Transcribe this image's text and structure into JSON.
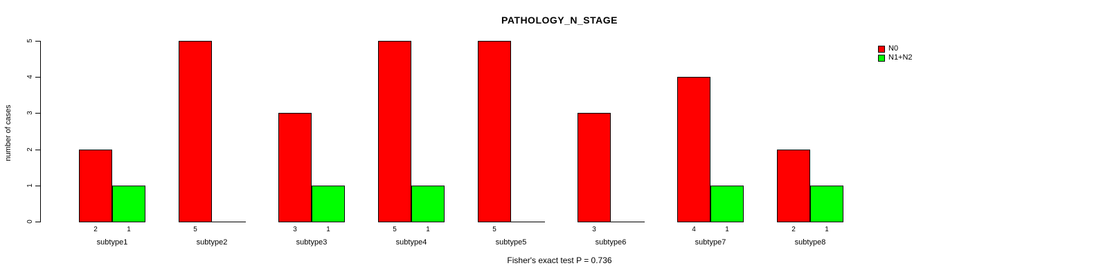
{
  "chart_data": {
    "type": "bar",
    "title": "PATHOLOGY_N_STAGE",
    "ylabel": "number of cases",
    "xlabel": "",
    "annotation": "Fisher's exact test P = 0.736",
    "categories": [
      "subtype1",
      "subtype2",
      "subtype3",
      "subtype4",
      "subtype5",
      "subtype6",
      "subtype7",
      "subtype8"
    ],
    "series": [
      {
        "name": "N0",
        "color": "#ff0000",
        "values": [
          2,
          5,
          3,
          5,
          5,
          3,
          4,
          2
        ]
      },
      {
        "name": "N1+N2",
        "color": "#00ff00",
        "values": [
          1,
          0,
          1,
          1,
          0,
          0,
          1,
          1
        ]
      }
    ],
    "bar_value_labels_shown": true,
    "ylim": [
      0,
      5
    ],
    "yticks": [
      0,
      1,
      2,
      3,
      4,
      5
    ],
    "legend_position": "top-right",
    "grid": false,
    "axis_color": "#000000",
    "text_color": "#000000",
    "background_color": "#ffffff"
  }
}
